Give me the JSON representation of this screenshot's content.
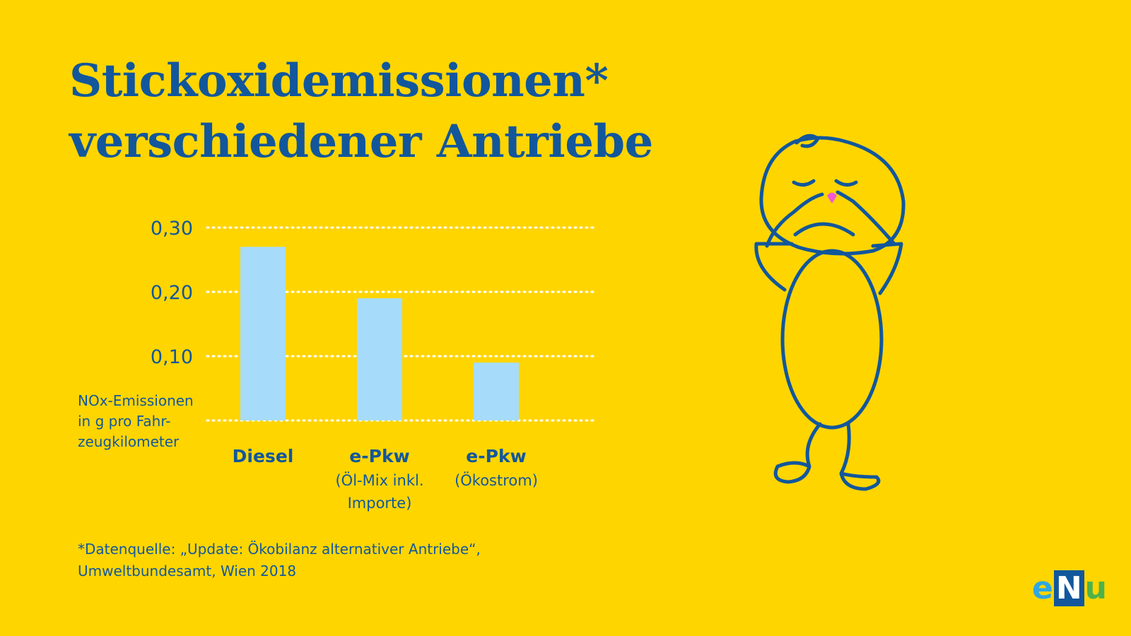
{
  "title": {
    "line1": "Stickoxidemissionen*",
    "line2": "verschiedener Antriebe"
  },
  "chart_data": {
    "type": "bar",
    "categories": [
      {
        "label": "Diesel",
        "sub": []
      },
      {
        "label": "e-Pkw",
        "sub": [
          "(Öl-Mix inkl.",
          "Importe)"
        ]
      },
      {
        "label": "e-Pkw",
        "sub": [
          "(Ökostrom)"
        ]
      }
    ],
    "values": [
      0.27,
      0.19,
      0.09
    ],
    "yticks": [
      "0,10",
      "0,20",
      "0,30"
    ],
    "ytick_values": [
      0.1,
      0.2,
      0.3
    ],
    "ylim": [
      0,
      0.3
    ],
    "grid": true,
    "ylabel": [
      "NOx-Emissionen",
      "in g pro Fahr-",
      "zeugkilometer"
    ],
    "colors": {
      "bar": "#A6DCFA",
      "text": "#12579C",
      "grid": "#FFFFFF"
    }
  },
  "source": {
    "line1": "*Datenquelle: „Update: Ökobilanz alternativer Antriebe“,",
    "line2": "Umweltbundesamt, Wien 2018"
  },
  "illustration": {
    "icon": "holding-nose-figure-icon"
  },
  "logo": {
    "part1": "e",
    "part2": "N",
    "part3": "u"
  },
  "colors": {
    "background": "#FFD500",
    "accent": "#12579C",
    "nose": "#F05AD2"
  }
}
